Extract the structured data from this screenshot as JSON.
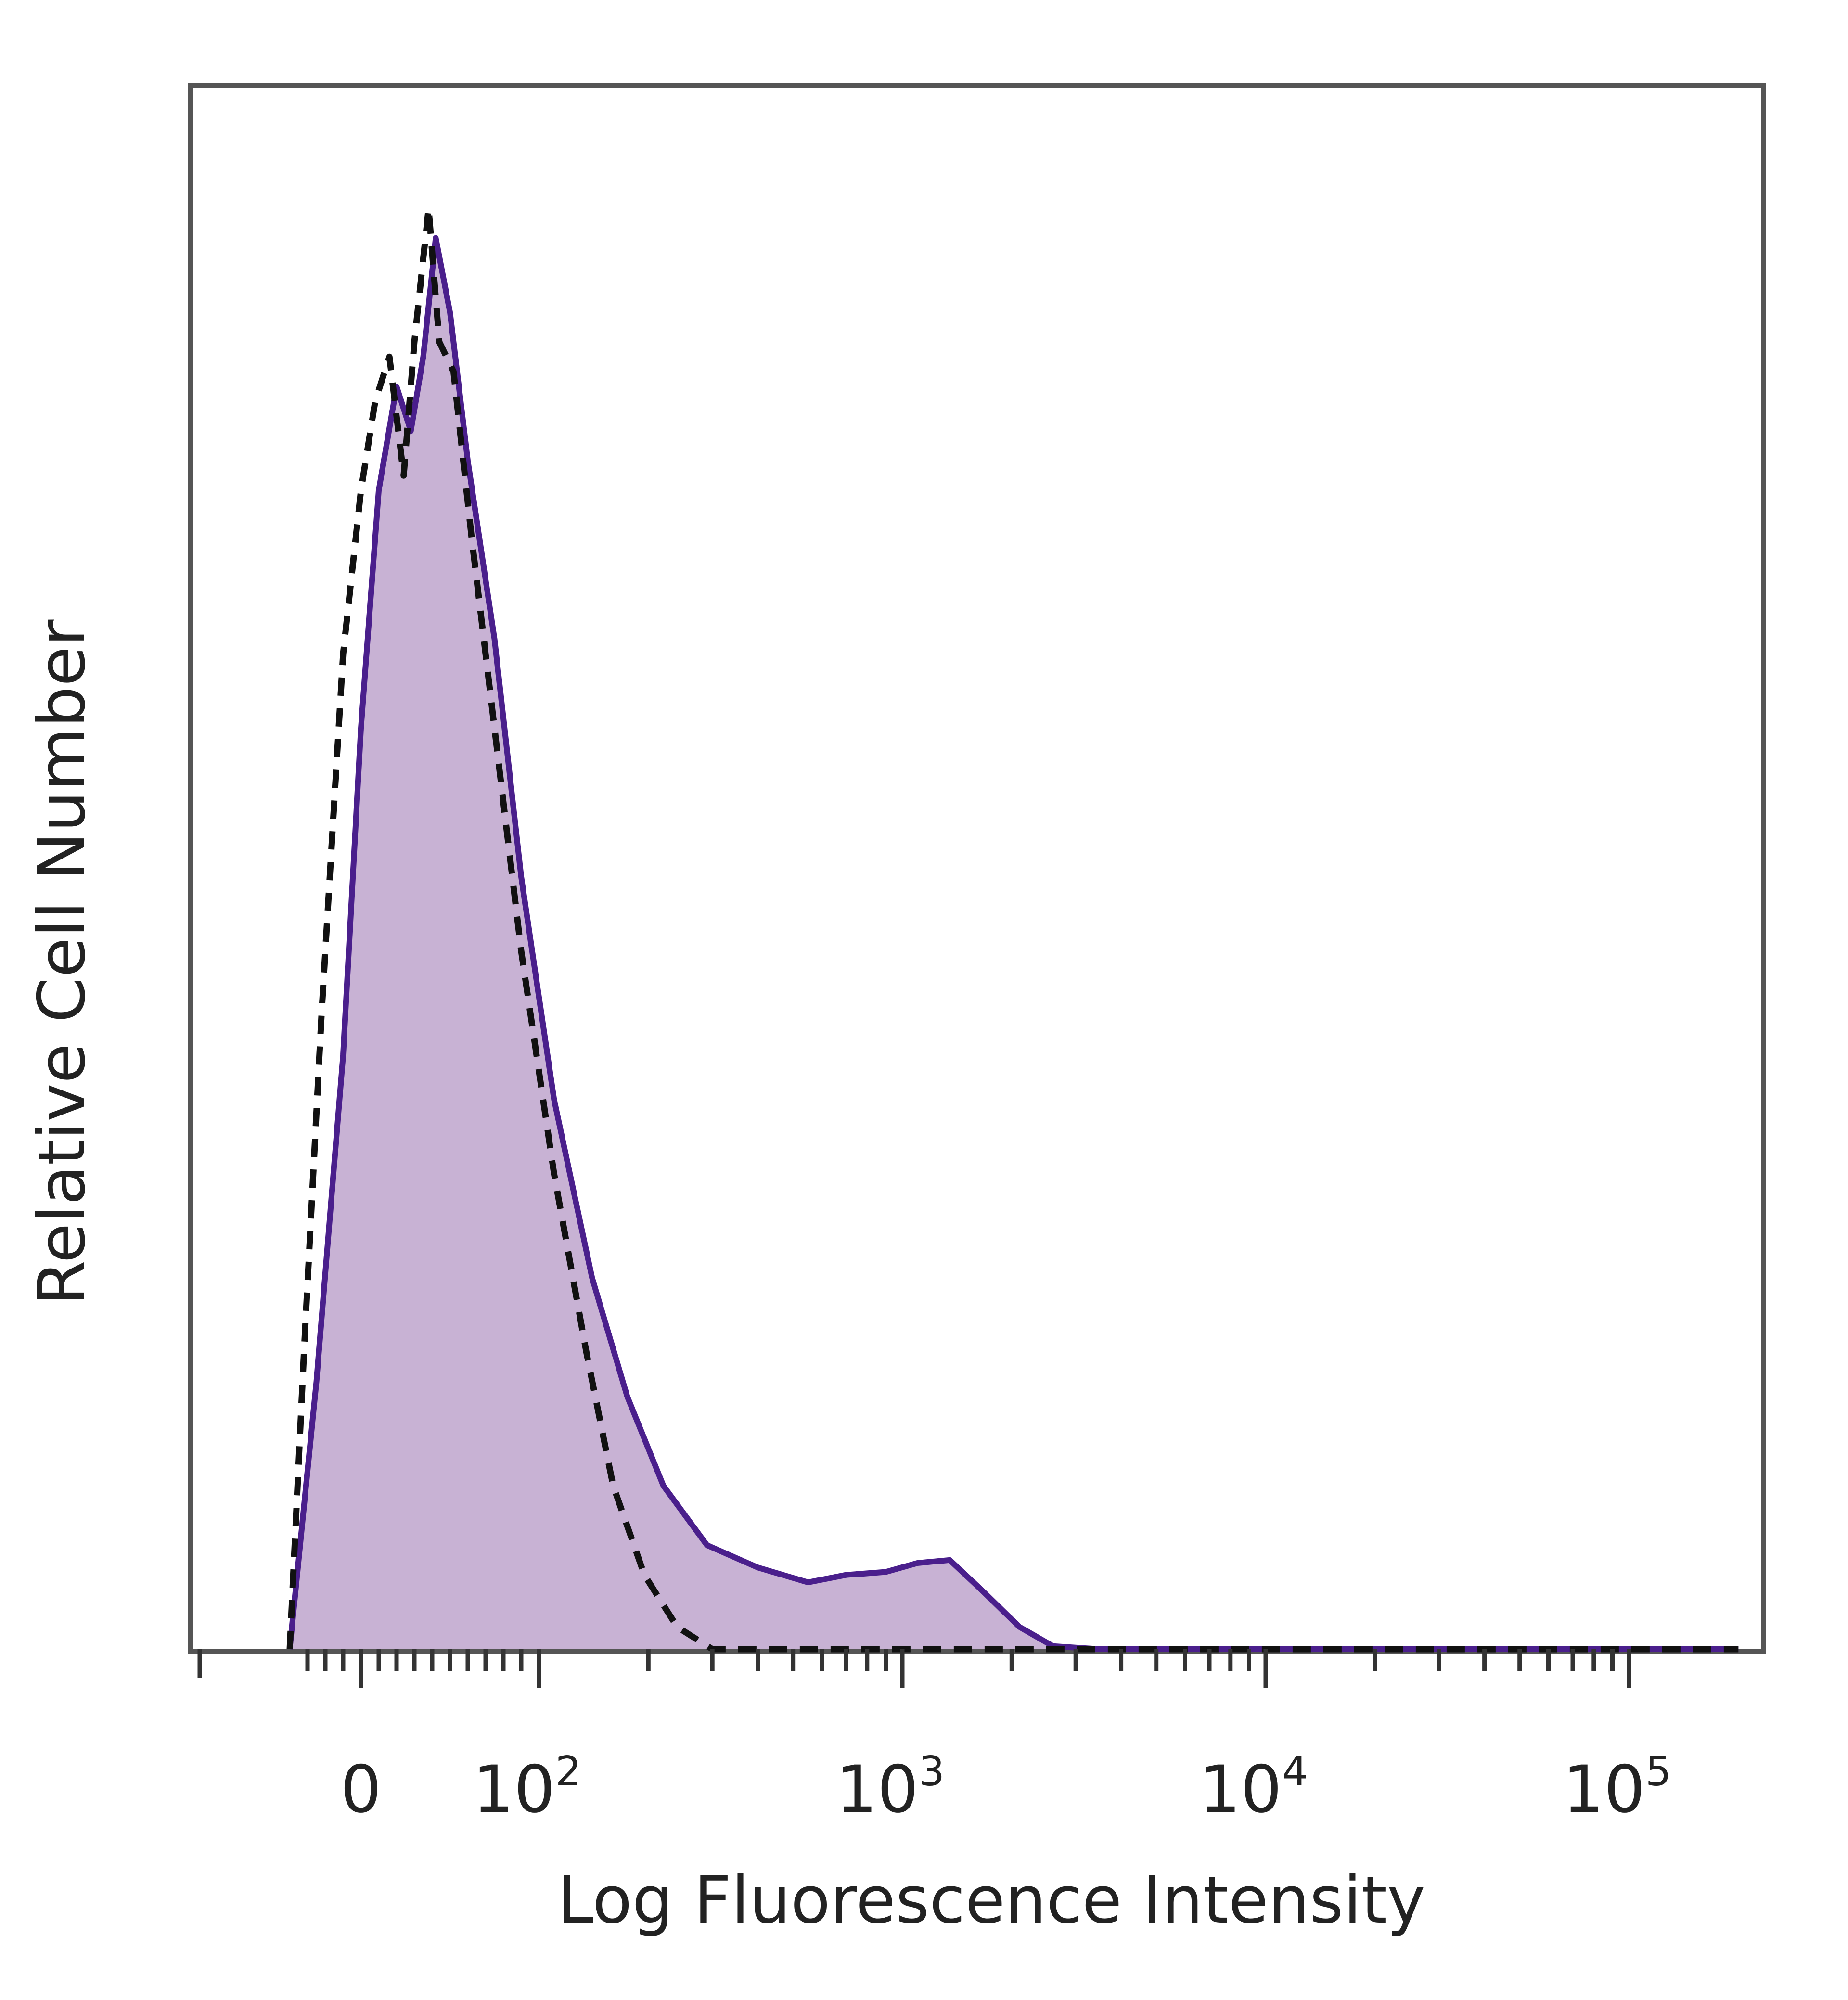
{
  "chart_data": {
    "type": "area",
    "xlabel": "Log Fluorescence Intensity",
    "ylabel": "Relative Cell Number",
    "x_scale": "biexponential",
    "grid": false,
    "x_ticks": [
      {
        "value": "0",
        "label": "0"
      },
      {
        "value": "10^2",
        "label": "10",
        "exp": "2"
      },
      {
        "value": "10^3",
        "label": "10",
        "exp": "3"
      },
      {
        "value": "10^4",
        "label": "10",
        "exp": "4"
      },
      {
        "value": "10^5",
        "label": "10",
        "exp": "5"
      }
    ],
    "series": [
      {
        "style": "filled-solid",
        "fill": "#c8b2d4",
        "stroke": "#4a1f8c",
        "points": [
          [
            -40,
            0.0
          ],
          [
            -25,
            0.18
          ],
          [
            -10,
            0.4
          ],
          [
            0,
            0.62
          ],
          [
            10,
            0.78
          ],
          [
            20,
            0.85
          ],
          [
            28,
            0.82
          ],
          [
            35,
            0.87
          ],
          [
            42,
            0.95
          ],
          [
            50,
            0.9
          ],
          [
            60,
            0.8
          ],
          [
            75,
            0.68
          ],
          [
            90,
            0.52
          ],
          [
            110,
            0.37
          ],
          [
            140,
            0.25
          ],
          [
            175,
            0.17
          ],
          [
            220,
            0.11
          ],
          [
            290,
            0.07
          ],
          [
            400,
            0.055
          ],
          [
            550,
            0.045
          ],
          [
            700,
            0.05
          ],
          [
            900,
            0.052
          ],
          [
            1100,
            0.058
          ],
          [
            1350,
            0.06
          ],
          [
            1650,
            0.04
          ],
          [
            2100,
            0.015
          ],
          [
            2600,
            0.002
          ],
          [
            3500,
            0.0
          ],
          [
            10000,
            0.0
          ],
          [
            100000,
            0.0
          ],
          [
            200000,
            0.0
          ]
        ]
      },
      {
        "style": "dashed",
        "stroke": "#111111",
        "points": [
          [
            -40,
            0.0
          ],
          [
            -32,
            0.2
          ],
          [
            -22,
            0.43
          ],
          [
            -10,
            0.67
          ],
          [
            0,
            0.78
          ],
          [
            8,
            0.84
          ],
          [
            16,
            0.87
          ],
          [
            24,
            0.79
          ],
          [
            30,
            0.88
          ],
          [
            38,
            0.97
          ],
          [
            44,
            0.88
          ],
          [
            52,
            0.86
          ],
          [
            62,
            0.75
          ],
          [
            75,
            0.62
          ],
          [
            90,
            0.47
          ],
          [
            110,
            0.32
          ],
          [
            135,
            0.2
          ],
          [
            160,
            0.11
          ],
          [
            195,
            0.05
          ],
          [
            240,
            0.015
          ],
          [
            300,
            0.0
          ],
          [
            1000,
            0.0
          ],
          [
            10000,
            0.0
          ],
          [
            100000,
            0.0
          ],
          [
            200000,
            0.0
          ]
        ]
      }
    ]
  }
}
